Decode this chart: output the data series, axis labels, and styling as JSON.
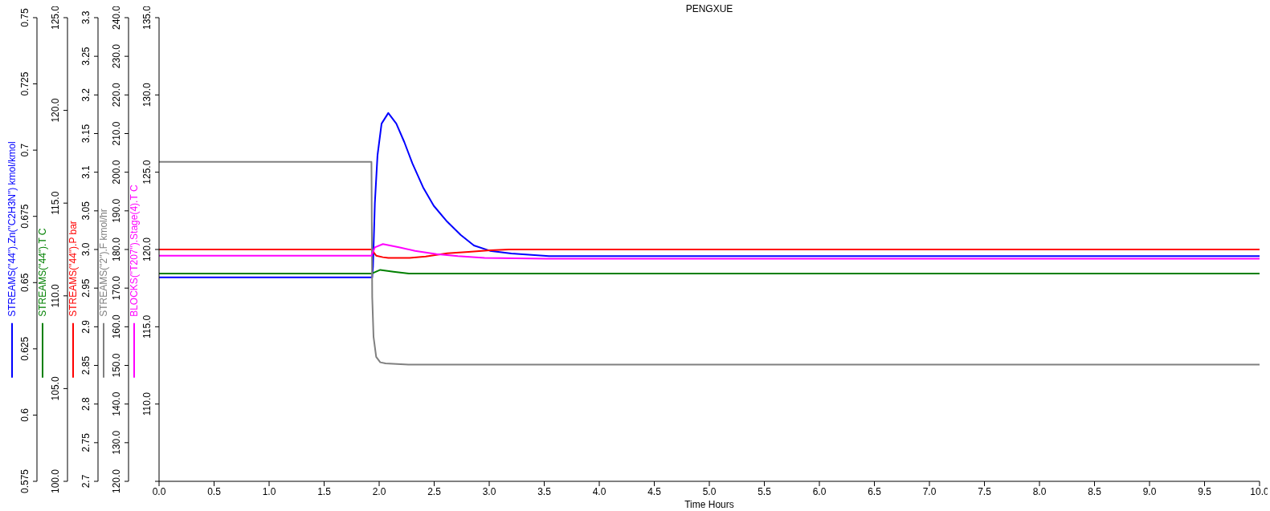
{
  "chart_data": [
    {
      "type": "line",
      "title": "PENGXUE",
      "xlabel": "Time Hours",
      "legend": "left",
      "xlim": [
        0,
        10
      ],
      "xticks": [
        {
          "value": 0,
          "label": "0.0"
        },
        0.5,
        {
          "value": 1,
          "label": "1.0"
        },
        1.5,
        {
          "value": 2,
          "label": "2.0"
        },
        2.5,
        {
          "value": 3,
          "label": "3.0"
        },
        3.5,
        {
          "value": 4,
          "label": "4.0"
        },
        4.5,
        {
          "value": 5,
          "label": "5.0"
        },
        5.5,
        {
          "value": 6,
          "label": "6.0"
        },
        6.5,
        {
          "value": 7,
          "label": "7.0"
        },
        7.5,
        {
          "value": 8,
          "label": "8.0"
        },
        8.5,
        {
          "value": 9,
          "label": "9.0"
        },
        9.5,
        {
          "value": 10,
          "label": "10.0"
        }
      ],
      "ylim": [
        0.575,
        0.75
      ],
      "yticks": [
        0.575,
        0.6,
        0.625,
        0.65,
        0.675,
        0.7,
        0.725,
        0.75
      ],
      "y2lim": [
        100,
        125
      ],
      "y2ticks": [
        {
          "value": 100,
          "label": "100.0"
        },
        {
          "value": 105,
          "label": "105.0"
        },
        {
          "value": 110,
          "label": "110.0"
        },
        {
          "value": 115,
          "label": "115.0"
        },
        {
          "value": 120,
          "label": "120.0"
        },
        {
          "value": 125,
          "label": "125.0"
        }
      ],
      "y3lim": [
        2.7,
        3.3
      ],
      "y3ticks": [
        2.7,
        2.75,
        2.8,
        2.85,
        2.9,
        2.95,
        {
          "value": 3,
          "label": "3.0"
        },
        3.05,
        3.1,
        3.15,
        3.2,
        3.25,
        3.3
      ],
      "series": [
        {
          "name": "STREAMS(\"44\").Zn(\"C2H3N\") kmol/kmol",
          "color": "#0000ff",
          "axis": "y",
          "x": [
            0,
            1.93,
            1.937,
            1.944,
            1.961,
            1.985,
            2.022,
            2.083,
            2.156,
            2.229,
            2.302,
            2.399,
            2.496,
            2.618,
            2.74,
            2.861,
            3.007,
            3.202,
            3.543,
            10
          ],
          "values": [
            0.652,
            0.652,
            0.652,
            0.656,
            0.68,
            0.698,
            0.71,
            0.714,
            0.71,
            0.703,
            0.695,
            0.686,
            0.679,
            0.673,
            0.668,
            0.664,
            0.662,
            0.661,
            0.66,
            0.66
          ]
        },
        {
          "name": "STREAMS(\"44\").T C",
          "color": "#008000",
          "axis": "y2",
          "x": [
            0,
            1.93,
            2.01,
            2.13,
            2.27,
            2.8,
            10
          ],
          "values": [
            111.2,
            111.2,
            111.4,
            111.3,
            111.2,
            111.2,
            111.2
          ]
        },
        {
          "name": "STREAMS(\"44\").P bar",
          "color": "#ff0000",
          "axis": "y3",
          "x": [
            0,
            1.93,
            1.973,
            2.034,
            2.083,
            2.277,
            2.423,
            2.618,
            2.812,
            3.007,
            3.178,
            10
          ],
          "values": [
            3.0,
            3.0,
            2.992,
            2.99,
            2.989,
            2.989,
            2.991,
            2.995,
            2.997,
            2.999,
            3.0,
            3.0
          ]
        }
      ]
    },
    {
      "type": "line",
      "legend": "left",
      "tick_labels": "y",
      "xlim": [
        0,
        10
      ],
      "ylim": [
        120,
        240
      ],
      "yticks": [
        {
          "value": 120,
          "label": "120.0"
        },
        {
          "value": 130,
          "label": "130.0"
        },
        {
          "value": 140,
          "label": "140.0"
        },
        {
          "value": 150,
          "label": "150.0"
        },
        {
          "value": 160,
          "label": "160.0"
        },
        {
          "value": 170,
          "label": "170.0"
        },
        {
          "value": 180,
          "label": "180.0"
        },
        {
          "value": 190,
          "label": "190.0"
        },
        {
          "value": 200,
          "label": "200.0"
        },
        {
          "value": 210,
          "label": "210.0"
        },
        {
          "value": 220,
          "label": "220.0"
        },
        {
          "value": 230,
          "label": "230.0"
        },
        {
          "value": 240,
          "label": "240.0"
        }
      ],
      "y2lim": [
        105,
        135
      ],
      "y2ticks": [
        {
          "value": 105,
          "label": null
        },
        {
          "value": 110,
          "label": "110.0"
        },
        {
          "value": 115,
          "label": "115.0"
        },
        {
          "value": 120,
          "label": "120.0"
        },
        {
          "value": 125,
          "label": "125.0"
        },
        {
          "value": 130,
          "label": "130.0"
        },
        {
          "value": 135,
          "label": "135.0"
        }
      ],
      "series": [
        {
          "name": "STREAMS(\"2\").F kmol/hr",
          "color": "#808080",
          "axis": "y",
          "x": [
            0,
            1.93,
            1.937,
            1.949,
            1.973,
            2.01,
            2.058,
            2.265,
            10
          ],
          "values": [
            202.7,
            202.7,
            167.7,
            157.4,
            152.2,
            150.8,
            150.5,
            150.2,
            150.2
          ]
        },
        {
          "name": "BLOCKS(\"T207\").Stage(4).T C",
          "color": "#ff00ff",
          "axis": "y2",
          "x": [
            0,
            1.93,
            1.961,
            2.034,
            2.18,
            2.326,
            2.52,
            2.715,
            2.958,
            3.518,
            10
          ],
          "values": [
            119.6,
            119.6,
            120.14,
            120.35,
            120.14,
            119.91,
            119.7,
            119.57,
            119.46,
            119.4,
            119.4
          ]
        }
      ]
    }
  ]
}
